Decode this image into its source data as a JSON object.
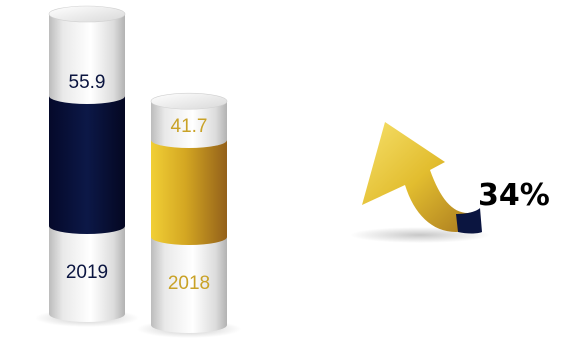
{
  "chart_data": {
    "type": "bar",
    "categories": [
      "2019",
      "2018"
    ],
    "values": [
      55.9,
      41.7
    ],
    "value_labels": [
      "55.9",
      "41.7"
    ],
    "title": "",
    "xlabel": "",
    "ylabel": "",
    "grid": false,
    "legend": "none",
    "colors": [
      "#0b1540",
      "#c9a227"
    ],
    "label_colors": [
      "#0b1540",
      "#c9a227"
    ],
    "change": {
      "label": "34%",
      "direction": "up",
      "icon": "curved-up-arrow-icon"
    }
  }
}
